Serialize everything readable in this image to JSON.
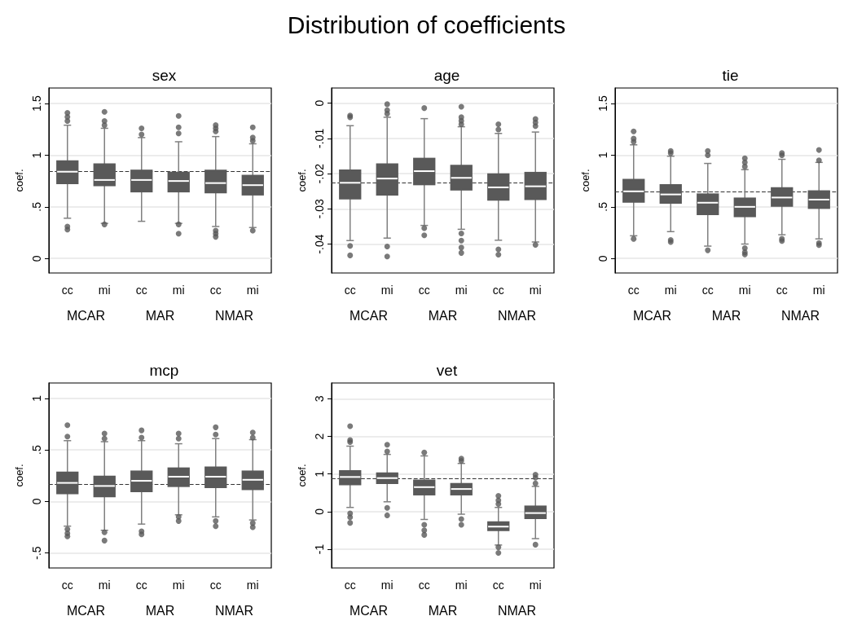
{
  "chart_data": [
    {
      "type": "other",
      "title": "Distribution of coefficients"
    },
    {
      "type": "box",
      "title": "sex",
      "ylabel": "coef.",
      "categories": [
        "cc",
        "mi",
        "cc",
        "mi",
        "cc",
        "mi"
      ],
      "annotations": [
        "MCAR",
        "MAR",
        "NMAR"
      ],
      "color": "#595959",
      "grid": "y",
      "ylim": [
        -0.14,
        1.65
      ],
      "yticks": [
        0,
        {
          "value": 0.5,
          "label": ".5"
        },
        1,
        1.5
      ],
      "boxes": [
        {
          "low": 0.39,
          "q1": 0.72,
          "median": 0.84,
          "q3": 0.95,
          "high": 1.29,
          "outliers": [
            1.33,
            1.37,
            1.41,
            0.28,
            0.31
          ]
        },
        {
          "low": 0.34,
          "q1": 0.7,
          "median": 0.76,
          "q3": 0.92,
          "high": 1.26,
          "outliers": [
            1.29,
            1.33,
            1.42,
            0.33
          ]
        },
        {
          "low": 0.36,
          "q1": 0.64,
          "median": 0.76,
          "q3": 0.86,
          "high": 1.17,
          "outliers": [
            1.2,
            1.26
          ]
        },
        {
          "low": 0.34,
          "q1": 0.64,
          "median": 0.75,
          "q3": 0.84,
          "high": 1.13,
          "outliers": [
            1.21,
            1.27,
            1.38,
            0.33,
            0.24
          ]
        },
        {
          "low": 0.31,
          "q1": 0.63,
          "median": 0.73,
          "q3": 0.86,
          "high": 1.18,
          "outliers": [
            1.23,
            1.26,
            1.29,
            0.27,
            0.24,
            0.21
          ]
        },
        {
          "low": 0.3,
          "q1": 0.61,
          "median": 0.71,
          "q3": 0.81,
          "high": 1.11,
          "outliers": [
            1.14,
            1.17,
            1.27,
            0.27
          ]
        }
      ],
      "ref_lines": [
        {
          "axis": "y",
          "value": 0.84,
          "line_style": "dashed"
        }
      ]
    },
    {
      "type": "box",
      "title": "age",
      "ylabel": "coef.",
      "categories": [
        "cc",
        "mi",
        "cc",
        "mi",
        "cc",
        "mi"
      ],
      "annotations": [
        "MCAR",
        "MAR",
        "NMAR"
      ],
      "color": "#595959",
      "grid": "y",
      "ylim": [
        -0.0482,
        0.0043
      ],
      "yticks": [
        {
          "value": -0.04,
          "label": "-.04"
        },
        {
          "value": -0.03,
          "label": "-.03"
        },
        {
          "value": -0.02,
          "label": "-.02"
        },
        {
          "value": -0.01,
          "label": "-.01"
        },
        0
      ],
      "boxes": [
        {
          "low": -0.039,
          "q1": -0.0273,
          "median": -0.0226,
          "q3": -0.0188,
          "high": -0.0064,
          "outliers": [
            -0.0035,
            -0.004,
            -0.0405,
            -0.0432
          ]
        },
        {
          "low": -0.0383,
          "q1": -0.0262,
          "median": -0.0214,
          "q3": -0.0171,
          "high": -0.004,
          "outliers": [
            -0.0003,
            -0.002,
            -0.003,
            -0.0407,
            -0.0435
          ]
        },
        {
          "low": -0.0347,
          "q1": -0.0233,
          "median": -0.0193,
          "q3": -0.0155,
          "high": -0.0044,
          "outliers": [
            -0.0014,
            -0.0355,
            -0.0375
          ]
        },
        {
          "low": -0.0358,
          "q1": -0.0248,
          "median": -0.0212,
          "q3": -0.0175,
          "high": -0.0067,
          "outliers": [
            -0.001,
            -0.004,
            -0.005,
            -0.006,
            -0.037,
            -0.039,
            -0.041,
            -0.0425
          ]
        },
        {
          "low": -0.0389,
          "q1": -0.0277,
          "median": -0.0239,
          "q3": -0.0199,
          "high": -0.0086,
          "outliers": [
            -0.006,
            -0.0075,
            -0.0415,
            -0.043
          ]
        },
        {
          "low": -0.0394,
          "q1": -0.0275,
          "median": -0.0236,
          "q3": -0.0195,
          "high": -0.0082,
          "outliers": [
            -0.0045,
            -0.0055,
            -0.0065,
            -0.0402
          ]
        }
      ],
      "ref_lines": [
        {
          "axis": "y",
          "value": -0.0226,
          "line_style": "dashed"
        }
      ]
    },
    {
      "type": "box",
      "title": "tie",
      "ylabel": "coef.",
      "categories": [
        "cc",
        "mi",
        "cc",
        "mi",
        "cc",
        "mi"
      ],
      "annotations": [
        "MCAR",
        "MAR",
        "NMAR"
      ],
      "color": "#595959",
      "grid": "y",
      "ylim": [
        -0.14,
        1.65
      ],
      "yticks": [
        0,
        {
          "value": 0.5,
          "label": ".5"
        },
        1,
        1.5
      ],
      "boxes": [
        {
          "low": 0.22,
          "q1": 0.54,
          "median": 0.65,
          "q3": 0.77,
          "high": 1.1,
          "outliers": [
            1.13,
            1.16,
            1.23,
            0.19
          ]
        },
        {
          "low": 0.26,
          "q1": 0.53,
          "median": 0.62,
          "q3": 0.72,
          "high": 0.99,
          "outliers": [
            1.02,
            1.04,
            0.16,
            0.18
          ]
        },
        {
          "low": 0.12,
          "q1": 0.42,
          "median": 0.54,
          "q3": 0.63,
          "high": 0.92,
          "outliers": [
            1.0,
            1.04,
            0.08
          ]
        },
        {
          "low": 0.14,
          "q1": 0.4,
          "median": 0.5,
          "q3": 0.59,
          "high": 0.86,
          "outliers": [
            0.89,
            0.93,
            0.97,
            0.1,
            0.06,
            0.04
          ]
        },
        {
          "low": 0.23,
          "q1": 0.5,
          "median": 0.59,
          "q3": 0.69,
          "high": 0.96,
          "outliers": [
            1.0,
            1.02,
            0.19,
            0.17
          ]
        },
        {
          "low": 0.19,
          "q1": 0.48,
          "median": 0.57,
          "q3": 0.66,
          "high": 0.93,
          "outliers": [
            0.95,
            1.05,
            0.15,
            0.13
          ]
        }
      ],
      "ref_lines": [
        {
          "axis": "y",
          "value": 0.65,
          "line_style": "dashed"
        }
      ]
    },
    {
      "type": "box",
      "title": "mcp",
      "ylabel": "coef.",
      "categories": [
        "cc",
        "mi",
        "cc",
        "mi",
        "cc",
        "mi"
      ],
      "annotations": [
        "MCAR",
        "MAR",
        "NMAR"
      ],
      "color": "#595959",
      "grid": "y",
      "ylim": [
        -0.646,
        1.15
      ],
      "yticks": [
        {
          "value": -0.5,
          "label": "-.5"
        },
        0,
        {
          "value": 0.5,
          "label": ".5"
        },
        1
      ],
      "boxes": [
        {
          "low": -0.24,
          "q1": 0.07,
          "median": 0.18,
          "q3": 0.29,
          "high": 0.59,
          "outliers": [
            0.63,
            0.74,
            -0.27,
            -0.31,
            -0.34
          ]
        },
        {
          "low": -0.28,
          "q1": 0.04,
          "median": 0.15,
          "q3": 0.25,
          "high": 0.58,
          "outliers": [
            0.61,
            0.66,
            -0.3,
            -0.38
          ]
        },
        {
          "low": -0.22,
          "q1": 0.09,
          "median": 0.2,
          "q3": 0.3,
          "high": 0.59,
          "outliers": [
            0.62,
            0.69,
            -0.29,
            -0.32
          ]
        },
        {
          "low": -0.13,
          "q1": 0.14,
          "median": 0.24,
          "q3": 0.33,
          "high": 0.56,
          "outliers": [
            0.61,
            0.66,
            -0.15,
            -0.19
          ]
        },
        {
          "low": -0.15,
          "q1": 0.13,
          "median": 0.24,
          "q3": 0.34,
          "high": 0.61,
          "outliers": [
            0.65,
            0.72,
            -0.19,
            -0.24
          ]
        },
        {
          "low": -0.18,
          "q1": 0.11,
          "median": 0.21,
          "q3": 0.3,
          "high": 0.6,
          "outliers": [
            0.62,
            0.67,
            -0.21,
            -0.25
          ]
        }
      ],
      "ref_lines": [
        {
          "axis": "y",
          "value": 0.17,
          "line_style": "dashed"
        }
      ]
    },
    {
      "type": "box",
      "title": "vet",
      "ylabel": "coef.",
      "categories": [
        "cc",
        "mi",
        "cc",
        "mi",
        "cc",
        "mi"
      ],
      "annotations": [
        "MCAR",
        "MAR",
        "NMAR"
      ],
      "color": "#595959",
      "grid": "y",
      "ylim": [
        -1.5,
        3.42
      ],
      "yticks": [
        -1,
        0,
        1,
        2,
        3
      ],
      "boxes": [
        {
          "low": 0.11,
          "q1": 0.7,
          "median": 0.92,
          "q3": 1.1,
          "high": 1.74,
          "outliers": [
            1.85,
            1.9,
            2.27,
            -0.05,
            -0.15,
            -0.3
          ]
        },
        {
          "low": 0.26,
          "q1": 0.73,
          "median": 0.89,
          "q3": 1.04,
          "high": 1.52,
          "outliers": [
            1.6,
            1.78,
            0.1,
            -0.1
          ]
        },
        {
          "low": -0.21,
          "q1": 0.43,
          "median": 0.65,
          "q3": 0.85,
          "high": 1.48,
          "outliers": [
            1.57,
            -0.35,
            -0.5,
            -0.62
          ]
        },
        {
          "low": -0.07,
          "q1": 0.43,
          "median": 0.6,
          "q3": 0.76,
          "high": 1.28,
          "outliers": [
            1.35,
            1.41,
            -0.2,
            -0.35
          ]
        },
        {
          "low": -0.89,
          "q1": -0.52,
          "median": -0.4,
          "q3": -0.26,
          "high": 0.11,
          "outliers": [
            0.2,
            0.3,
            0.42,
            -0.95,
            -1.1
          ]
        },
        {
          "low": -0.72,
          "q1": -0.2,
          "median": -0.04,
          "q3": 0.16,
          "high": 0.67,
          "outliers": [
            0.75,
            0.9,
            0.98,
            -0.88
          ]
        }
      ],
      "ref_lines": [
        {
          "axis": "y",
          "value": 0.88,
          "line_style": "dashed"
        }
      ]
    }
  ]
}
